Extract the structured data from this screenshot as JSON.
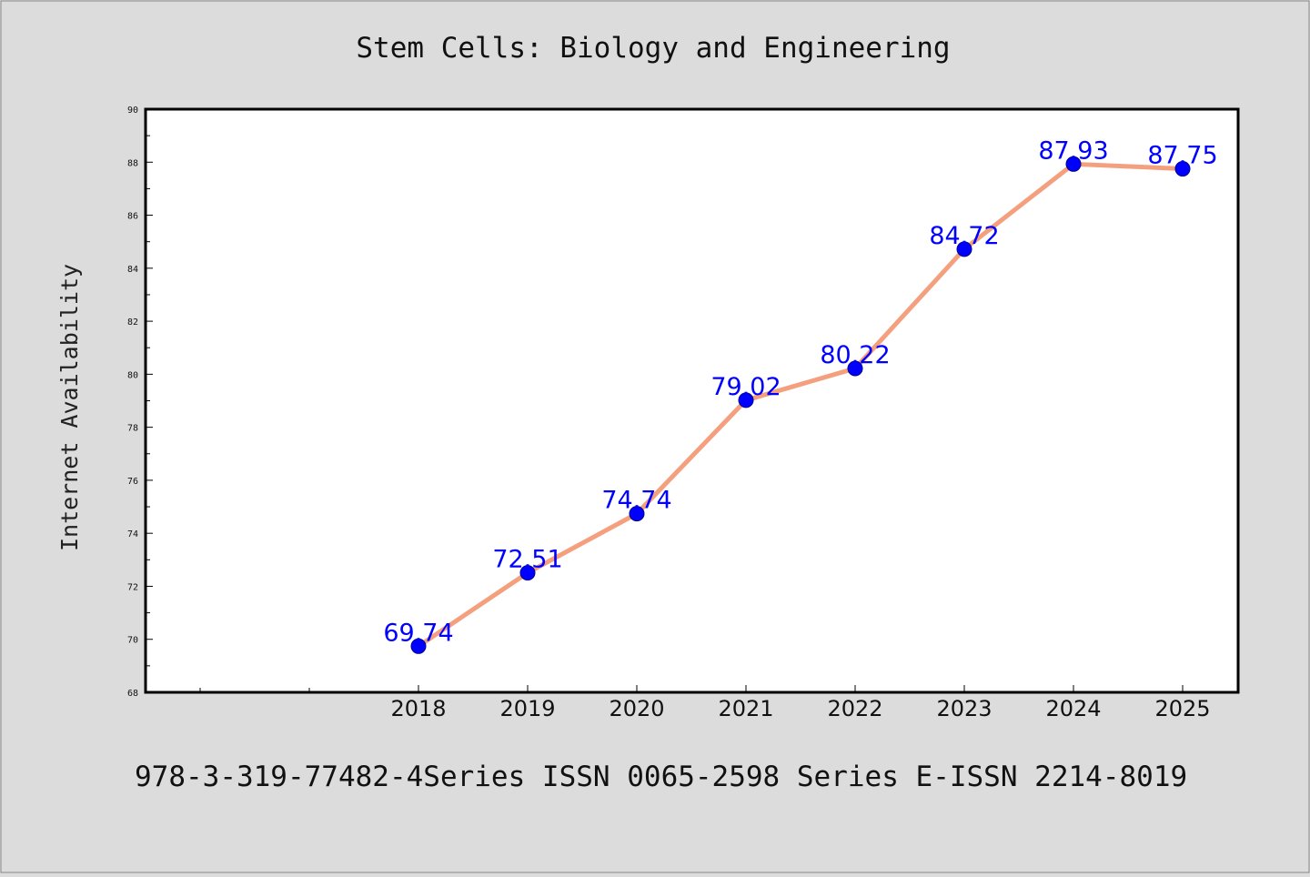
{
  "chart_data": {
    "type": "line",
    "title": "Stem Cells: Biology and Engineering",
    "xlabel": "",
    "ylabel": "Internet Availability",
    "categories": [
      "2018",
      "2019",
      "2020",
      "2021",
      "2022",
      "2023",
      "2024",
      "2025"
    ],
    "series": [
      {
        "values": [
          69.74,
          72.51,
          74.74,
          79.02,
          80.22,
          84.72,
          87.93,
          87.75
        ],
        "labels": [
          "69.74",
          "72.51",
          "74.74",
          "79.02",
          "80.22",
          "84.72",
          "87.93",
          "87.75"
        ]
      }
    ],
    "ylim": [
      68,
      90
    ],
    "yticks": [
      "68",
      "70",
      "72",
      "74",
      "76",
      "78",
      "80",
      "82",
      "84",
      "86",
      "88",
      "90"
    ],
    "grid": false,
    "legend": "none",
    "colors": {
      "line": "#f4a07e",
      "marker": "#0000ff",
      "label": "#0000ff",
      "background": "#dcdcdc",
      "plot_background": "#ffffff"
    }
  },
  "footer": "978-3-319-77482-4Series ISSN 0065-2598 Series E-ISSN 2214-8019"
}
